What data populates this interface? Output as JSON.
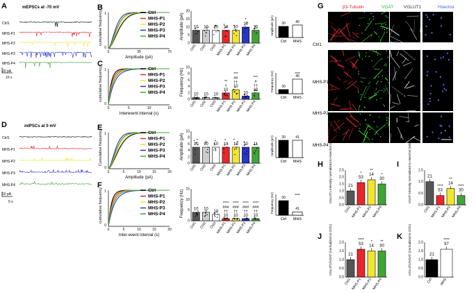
{
  "panels": {
    "A": {
      "letter": "A",
      "title": "mEPSCs at -70 mV",
      "traces": [
        "Ctrl1",
        "MHS-P1",
        "MHS-P2",
        "MHS-P3",
        "MHS-P4"
      ],
      "scale_y": "20 pA",
      "scale_x": "10 s"
    },
    "D": {
      "letter": "D",
      "title": "mIPSCs at 0 mV",
      "traces": [
        "Ctrl1",
        "MHS-P1",
        "MHS-P2",
        "MHS-P3",
        "MHS-P4"
      ],
      "scale_y": "10 pA",
      "scale_x": "5 s"
    },
    "B": {
      "letter": "B",
      "ylabel": "cumulative frequency",
      "xlabel": "Amplitude (pA)",
      "xticks": [
        "0",
        "35",
        "70"
      ],
      "yticks": [
        "0",
        "1"
      ],
      "legend": [
        "Ctrl",
        "MHS-P1",
        "MHS-P2",
        "MHS-P3",
        "MHS-P4"
      ],
      "bar_ylabel": "Amplitude (pA)",
      "bar_yticks": [
        "0",
        "5",
        "10",
        "15",
        "20"
      ],
      "bar_groups": [
        "Ctrl1",
        "Ctrl2",
        "Ctrl3",
        "MHS-P1",
        "MHS-P2",
        "MHS-P3",
        "MHS-P4"
      ],
      "bar_n": [
        "10",
        "10",
        "10",
        "10",
        "10",
        "10",
        "10"
      ],
      "bar_sig": [
        "",
        "",
        "",
        "",
        "",
        "*",
        ""
      ],
      "inset_ylabel": "Amplitude (pA)",
      "inset_groups": [
        "Ctrl",
        "MHS"
      ],
      "inset_n": [
        "30",
        "40"
      ]
    },
    "C": {
      "letter": "C",
      "ylabel": "cumulative frequency",
      "xlabel": "Interevent interval (s)",
      "xticks": [
        "0",
        "5",
        "10",
        "15"
      ],
      "yticks": [
        "0",
        "1"
      ],
      "legend": [
        "Ctrl",
        "MHS-P1",
        "MHS-P2",
        "MHS-P3",
        "MHS-P4"
      ],
      "bar_ylabel": "Frequency (Hz)",
      "bar_yticks": [
        "0",
        "2",
        "4",
        "6",
        "8",
        "10"
      ],
      "bar_groups": [
        "Ctrl1",
        "Ctrl2",
        "Ctrl3",
        "MHS-P1",
        "MHS-P2",
        "MHS-P3",
        "MHS-P4"
      ],
      "bar_n": [
        "10",
        "10",
        "10",
        "10",
        "10",
        "10",
        "10"
      ],
      "bar_sig": [
        "",
        "",
        "",
        "**\n†",
        "***\n##\n††",
        "",
        "***\n#\n††"
      ],
      "inset_ylabel": "Frequency (Hz)",
      "inset_groups": [
        "Ctrl",
        "MHS"
      ],
      "inset_n": [
        "30",
        "40"
      ],
      "inset_sig": "****"
    },
    "E": {
      "letter": "E",
      "ylabel": "Cumulative frequency",
      "xlabel": "Amplitude (pA)",
      "xticks": [
        "0",
        "5",
        "10",
        "15",
        "20"
      ],
      "yticks": [
        "0",
        "1"
      ],
      "legend": [
        "Ctrl",
        "MHS-P1",
        "MHS-P2",
        "MHS-P3",
        "MHS-P4"
      ],
      "bar_ylabel": "Amplitude (pA)",
      "bar_yticks": [
        "0",
        "2",
        "4",
        "6",
        "8",
        "10"
      ],
      "bar_groups": [
        "Ctrl1",
        "Ctrl2",
        "Ctrl3",
        "MHS-P1",
        "MHS-P2",
        "MHS-P3",
        "MHS-P4"
      ],
      "bar_n": [
        "10",
        "10",
        "10",
        "10",
        "10",
        "10",
        "11"
      ],
      "inset_ylabel": "Amplitude (pA)",
      "inset_groups": [
        "Ctrl",
        "MHS"
      ],
      "inset_n": [
        "30",
        "41"
      ]
    },
    "F": {
      "letter": "F",
      "ylabel": "cumulative frequency",
      "xlabel": "Inter-event interval (s)",
      "xticks": [
        "0",
        "5",
        "10",
        "15",
        "20"
      ],
      "yticks": [
        "0",
        "1"
      ],
      "legend": [
        "Ctrl",
        "MHS-P1",
        "MHS-P2",
        "MHS-P3",
        "MHS-P4"
      ],
      "bar_ylabel": "Frequency (Hz)",
      "bar_yticks": [
        "0",
        "5",
        "10",
        "15"
      ],
      "bar_groups": [
        "Ctrl1",
        "Ctrl2",
        "Ctrl3",
        "MHS-P1",
        "MHS-P2",
        "MHS-P3",
        "MHS-P4"
      ],
      "bar_n": [
        "10",
        "10",
        "10",
        "10",
        "10",
        "10",
        "10"
      ],
      "bar_sig": [
        "",
        "",
        "",
        "****\n###\n††",
        "****\n###\n††",
        "****\n###\n††",
        "****\n###\n††"
      ],
      "inset_ylabel": "Frequency (Hz)",
      "inset_groups": [
        "Ctrl",
        "MHS"
      ],
      "inset_n": [
        "30",
        "41"
      ],
      "inset_sig": "****"
    },
    "G": {
      "letter": "G",
      "columns": [
        "β3-Tubulin",
        "VGAT",
        "VGLUT1",
        "Hoechst"
      ],
      "rows": [
        "Ctrl1",
        "MHS-P1",
        "MHS-P2",
        "MHS-P4"
      ],
      "column_colors": [
        "#e02020",
        "#20c020",
        "#ffffff",
        "#4060ff"
      ]
    },
    "H": {
      "letter": "H",
      "ylabel": "VGLUT1 intensity normalized to Hoechst (relative to Ctrl1)",
      "yticks": [
        "0.0",
        "0.5",
        "1.0",
        "1.5",
        "2.0",
        "2.5"
      ],
      "groups": [
        "Ctrl1",
        "MHS-P1",
        "MHS-P2",
        "MHS-P4"
      ],
      "n": [
        "21",
        "53",
        "14",
        "30"
      ],
      "sig": [
        "",
        "*",
        "**",
        "*"
      ]
    },
    "I": {
      "letter": "I",
      "ylabel": "VGAT intensity normalized to Hoechst (relative to Ctrl1)",
      "yticks": [
        "0.0",
        "0.5",
        "1.0",
        "1.5"
      ],
      "groups": [
        "Ctrl1",
        "MHS-P1",
        "MHS-P2",
        "MHS-P4"
      ],
      "n": [
        "21",
        "53",
        "14",
        "30"
      ],
      "sig": [
        "",
        "****",
        "**",
        "****"
      ]
    },
    "J": {
      "letter": "J",
      "ylabel": "VGLUT1/VGAT (normalized to Ctrl1)",
      "yticks": [
        "0.0",
        "0.5",
        "1.0",
        "1.5",
        "2.0"
      ],
      "groups": [
        "Ctrl1",
        "MHS-P1",
        "MHS-P2",
        "MHS-P4"
      ],
      "n": [
        "21",
        "53",
        "14",
        "30"
      ],
      "sig": [
        "",
        "****",
        "*",
        "**"
      ]
    },
    "K": {
      "letter": "K",
      "ylabel": "VGLUT1/VGAT (normalized to Ctrl1)",
      "yticks": [
        "0.0",
        "0.5",
        "1.0",
        "1.5",
        "2.0"
      ],
      "groups": [
        "Ctrl",
        "MHS"
      ],
      "n": [
        "21",
        "97"
      ],
      "sig": [
        "",
        "****"
      ]
    }
  },
  "colors": {
    "ctrl": "#000000",
    "p1": "#e8262b",
    "p2": "#f2e52e",
    "p3": "#2a35c9",
    "p4": "#3fa535",
    "bar_ctrl": "#555555",
    "bar_light": "#cccccc",
    "bar_p1": "#e8262b",
    "bar_p2": "#f2e52e",
    "bar_p3": "#2a35c9",
    "bar_p4": "#3fa535"
  },
  "chart_data": [
    {
      "type": "bar",
      "panel": "B",
      "categories": [
        "Ctrl1",
        "Ctrl2",
        "Ctrl3",
        "MHS-P1",
        "MHS-P2",
        "MHS-P3",
        "MHS-P4"
      ],
      "values": [
        8,
        8,
        8,
        8,
        8,
        10,
        8
      ],
      "ylabel": "Amplitude (pA)",
      "ylim": [
        0,
        20
      ]
    },
    {
      "type": "bar",
      "panel": "B-inset",
      "categories": [
        "Ctrl",
        "MHS"
      ],
      "values": [
        8,
        9
      ],
      "ylim": [
        0,
        15
      ]
    },
    {
      "type": "bar",
      "panel": "C",
      "categories": [
        "Ctrl1",
        "Ctrl2",
        "Ctrl3",
        "MHS-P1",
        "MHS-P2",
        "MHS-P3",
        "MHS-P4"
      ],
      "values": [
        0.5,
        0.5,
        0.5,
        2,
        3,
        1,
        2
      ],
      "ylabel": "Frequency (Hz)",
      "ylim": [
        0,
        10
      ]
    },
    {
      "type": "bar",
      "panel": "C-inset",
      "categories": [
        "Ctrl",
        "MHS"
      ],
      "values": [
        0.6,
        2.1
      ],
      "ylim": [
        0,
        3
      ]
    },
    {
      "type": "bar",
      "panel": "E",
      "categories": [
        "Ctrl1",
        "Ctrl2",
        "Ctrl3",
        "MHS-P1",
        "MHS-P2",
        "MHS-P3",
        "MHS-P4"
      ],
      "values": [
        5,
        5,
        5,
        5,
        5,
        5,
        5
      ],
      "ylabel": "Amplitude (pA)",
      "ylim": [
        0,
        10
      ]
    },
    {
      "type": "bar",
      "panel": "E-inset",
      "categories": [
        "Ctrl",
        "MHS"
      ],
      "values": [
        5,
        5
      ],
      "ylim": [
        0,
        6
      ]
    },
    {
      "type": "bar",
      "panel": "F",
      "categories": [
        "Ctrl1",
        "Ctrl2",
        "Ctrl3",
        "MHS-P1",
        "MHS-P2",
        "MHS-P3",
        "MHS-P4"
      ],
      "values": [
        4,
        4,
        3,
        1,
        1,
        1,
        1
      ],
      "ylabel": "Frequency (Hz)",
      "ylim": [
        0,
        15
      ]
    },
    {
      "type": "bar",
      "panel": "F-inset",
      "categories": [
        "Ctrl",
        "MHS"
      ],
      "values": [
        3.5,
        0.8
      ],
      "ylim": [
        0,
        5
      ]
    },
    {
      "type": "bar",
      "panel": "H",
      "categories": [
        "Ctrl1",
        "MHS-P1",
        "MHS-P2",
        "MHS-P4"
      ],
      "values": [
        1.0,
        1.6,
        1.8,
        1.5
      ],
      "ylim": [
        0,
        2.5
      ]
    },
    {
      "type": "bar",
      "panel": "I",
      "categories": [
        "Ctrl1",
        "MHS-P1",
        "MHS-P2",
        "MHS-P4"
      ],
      "values": [
        1.0,
        0.4,
        0.7,
        0.4
      ],
      "ylim": [
        0,
        1.5
      ]
    },
    {
      "type": "bar",
      "panel": "J",
      "categories": [
        "Ctrl1",
        "MHS-P1",
        "MHS-P2",
        "MHS-P4"
      ],
      "values": [
        1.0,
        1.6,
        1.5,
        1.5
      ],
      "ylim": [
        0,
        2.0
      ]
    },
    {
      "type": "bar",
      "panel": "K",
      "categories": [
        "Ctrl",
        "MHS"
      ],
      "values": [
        1.0,
        1.6
      ],
      "ylim": [
        0,
        2.0
      ]
    }
  ]
}
